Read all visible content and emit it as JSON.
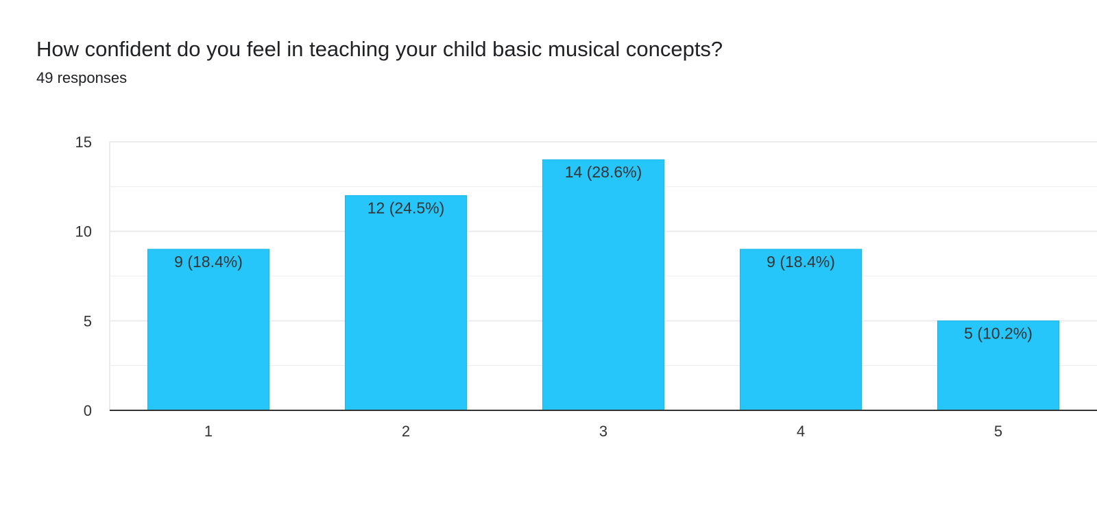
{
  "header": {
    "title": "How confident do you feel in teaching your child basic musical concepts?",
    "subtitle": "49 responses"
  },
  "colors": {
    "bar": "#26c6fa",
    "bar_edge": "#1fb6e8",
    "grid": "#ebebeb",
    "axis": "#333333"
  },
  "chart_data": {
    "type": "bar",
    "categories": [
      "1",
      "2",
      "3",
      "4",
      "5"
    ],
    "values": [
      9,
      12,
      14,
      9,
      5
    ],
    "data_labels": [
      "9 (18.4%)",
      "12 (24.5%)",
      "14 (28.6%)",
      "9 (18.4%)",
      "5 (10.2%)"
    ],
    "title": "How confident do you feel in teaching your child basic musical concepts?",
    "subtitle": "49 responses",
    "xlabel": "",
    "ylabel": "",
    "ylim": [
      0,
      15
    ],
    "yticks": [
      0,
      5,
      10,
      15
    ],
    "grid": true,
    "legend": "none"
  }
}
